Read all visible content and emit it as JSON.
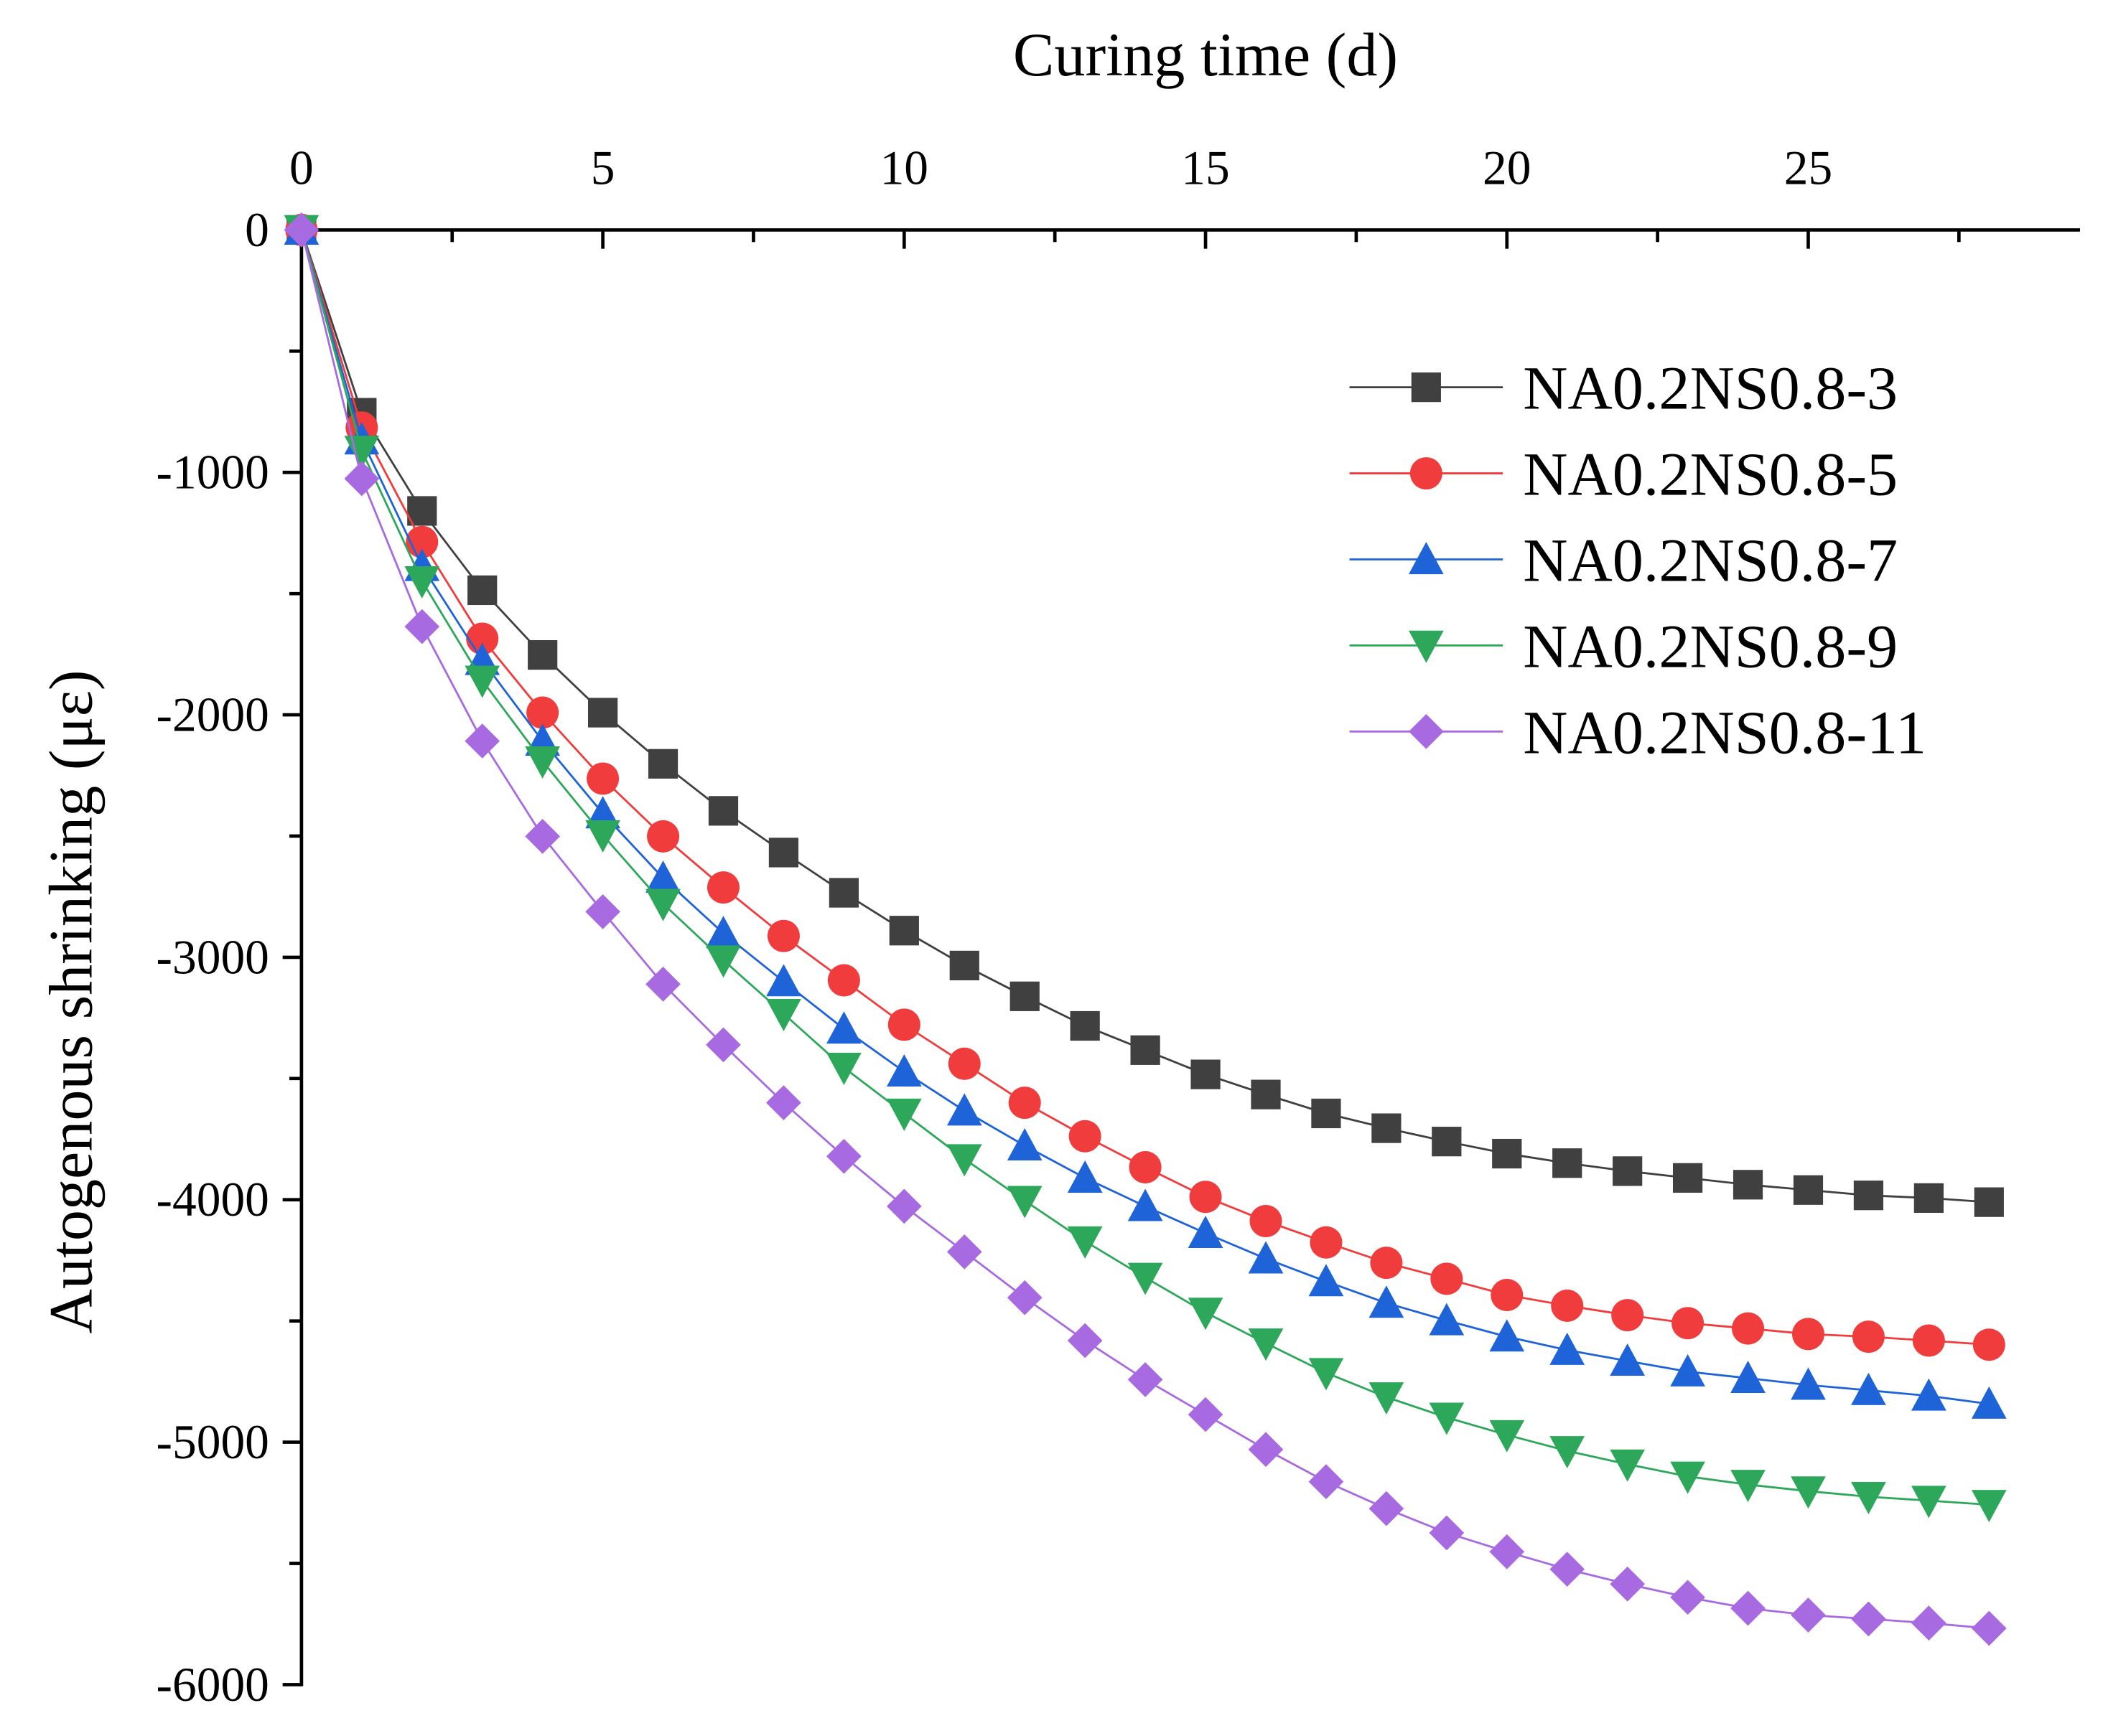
{
  "chart_data": {
    "type": "line",
    "title": "",
    "xlabel": "Curing time (d)",
    "ylabel": "Autogenous shrinking (με)",
    "xlim": [
      0,
      29.5
    ],
    "ylim": [
      -6000,
      0
    ],
    "xticks": [
      0,
      5,
      10,
      15,
      20,
      25
    ],
    "yticks": [
      0,
      -1000,
      -2000,
      -3000,
      -4000,
      -5000,
      -6000
    ],
    "xtick_labels": [
      "0",
      "5",
      "10",
      "15",
      "20",
      "25"
    ],
    "ytick_labels": [
      "0",
      "-1000",
      "-2000",
      "-3000",
      "-4000",
      "-5000",
      "-6000"
    ],
    "grid": false,
    "legend_position": "top-right",
    "x": [
      0,
      1,
      2,
      3,
      4,
      5,
      6,
      7,
      8,
      9,
      10,
      11,
      12,
      13,
      14,
      15,
      16,
      17,
      18,
      19,
      20,
      21,
      22,
      23,
      24,
      25,
      26,
      27,
      28
    ],
    "series": [
      {
        "name": "NA0.2NS0.8-3",
        "color": "#404040",
        "marker": "square",
        "values": [
          0,
          -754,
          -1159,
          -1486,
          -1753,
          -1991,
          -2202,
          -2396,
          -2568,
          -2734,
          -2890,
          -3034,
          -3161,
          -3283,
          -3383,
          -3483,
          -3566,
          -3644,
          -3705,
          -3760,
          -3810,
          -3849,
          -3882,
          -3910,
          -3938,
          -3960,
          -3982,
          -3993,
          -4010
        ]
      },
      {
        "name": "NA0.2NS0.8-5",
        "color": "#f03c3c",
        "marker": "circle",
        "values": [
          0,
          -815,
          -1287,
          -1686,
          -1991,
          -2263,
          -2501,
          -2712,
          -2912,
          -3095,
          -3278,
          -3439,
          -3600,
          -3738,
          -3866,
          -3988,
          -4088,
          -4176,
          -4260,
          -4326,
          -4393,
          -4437,
          -4476,
          -4509,
          -4531,
          -4554,
          -4565,
          -4581,
          -4598
        ]
      },
      {
        "name": "NA0.2NS0.8-7",
        "color": "#1f63d8",
        "marker": "triangle-up",
        "values": [
          0,
          -865,
          -1387,
          -1775,
          -2108,
          -2407,
          -2673,
          -2901,
          -3100,
          -3295,
          -3472,
          -3633,
          -3777,
          -3910,
          -4027,
          -4138,
          -4243,
          -4337,
          -4426,
          -4498,
          -4565,
          -4620,
          -4665,
          -4709,
          -4736,
          -4764,
          -4786,
          -4809,
          -4842
        ]
      },
      {
        "name": "NA0.2NS0.8-9",
        "color": "#2da85a",
        "marker": "triangle-down",
        "values": [
          0,
          -910,
          -1448,
          -1858,
          -2191,
          -2496,
          -2779,
          -3012,
          -3233,
          -3455,
          -3644,
          -3832,
          -4004,
          -4171,
          -4321,
          -4465,
          -4592,
          -4714,
          -4814,
          -4898,
          -4970,
          -5036,
          -5091,
          -5141,
          -5175,
          -5202,
          -5225,
          -5241,
          -5258
        ]
      },
      {
        "name": "NA0.2NS0.8-11",
        "color": "#a86ae0",
        "marker": "diamond",
        "values": [
          0,
          -1026,
          -1636,
          -2108,
          -2501,
          -2812,
          -3111,
          -3361,
          -3600,
          -3821,
          -4027,
          -4215,
          -4404,
          -4581,
          -4742,
          -4886,
          -5030,
          -5163,
          -5274,
          -5374,
          -5452,
          -5524,
          -5585,
          -5640,
          -5685,
          -5713,
          -5729,
          -5746,
          -5768
        ]
      }
    ]
  }
}
